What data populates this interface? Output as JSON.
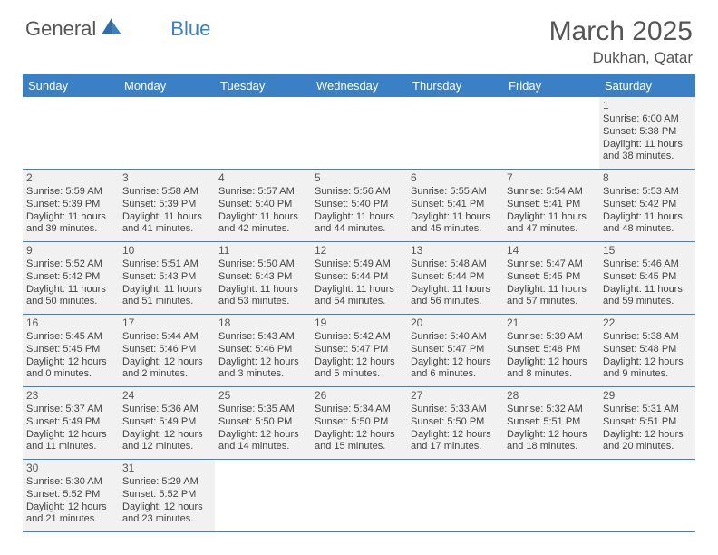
{
  "logo": {
    "text1": "General",
    "text2": "Blue"
  },
  "title": "March 2025",
  "location": "Dukhan, Qatar",
  "colors": {
    "header_bg": "#3b7fc4",
    "header_text": "#ffffff",
    "cell_bg": "#f1f1f1",
    "border": "#3b7fc4",
    "text": "#444444",
    "title_text": "#555555"
  },
  "dayHeaders": [
    "Sunday",
    "Monday",
    "Tuesday",
    "Wednesday",
    "Thursday",
    "Friday",
    "Saturday"
  ],
  "weeks": [
    [
      null,
      null,
      null,
      null,
      null,
      null,
      {
        "n": "1",
        "sr": "Sunrise: 6:00 AM",
        "ss": "Sunset: 5:38 PM",
        "dl": "Daylight: 11 hours and 38 minutes."
      }
    ],
    [
      {
        "n": "2",
        "sr": "Sunrise: 5:59 AM",
        "ss": "Sunset: 5:39 PM",
        "dl": "Daylight: 11 hours and 39 minutes."
      },
      {
        "n": "3",
        "sr": "Sunrise: 5:58 AM",
        "ss": "Sunset: 5:39 PM",
        "dl": "Daylight: 11 hours and 41 minutes."
      },
      {
        "n": "4",
        "sr": "Sunrise: 5:57 AM",
        "ss": "Sunset: 5:40 PM",
        "dl": "Daylight: 11 hours and 42 minutes."
      },
      {
        "n": "5",
        "sr": "Sunrise: 5:56 AM",
        "ss": "Sunset: 5:40 PM",
        "dl": "Daylight: 11 hours and 44 minutes."
      },
      {
        "n": "6",
        "sr": "Sunrise: 5:55 AM",
        "ss": "Sunset: 5:41 PM",
        "dl": "Daylight: 11 hours and 45 minutes."
      },
      {
        "n": "7",
        "sr": "Sunrise: 5:54 AM",
        "ss": "Sunset: 5:41 PM",
        "dl": "Daylight: 11 hours and 47 minutes."
      },
      {
        "n": "8",
        "sr": "Sunrise: 5:53 AM",
        "ss": "Sunset: 5:42 PM",
        "dl": "Daylight: 11 hours and 48 minutes."
      }
    ],
    [
      {
        "n": "9",
        "sr": "Sunrise: 5:52 AM",
        "ss": "Sunset: 5:42 PM",
        "dl": "Daylight: 11 hours and 50 minutes."
      },
      {
        "n": "10",
        "sr": "Sunrise: 5:51 AM",
        "ss": "Sunset: 5:43 PM",
        "dl": "Daylight: 11 hours and 51 minutes."
      },
      {
        "n": "11",
        "sr": "Sunrise: 5:50 AM",
        "ss": "Sunset: 5:43 PM",
        "dl": "Daylight: 11 hours and 53 minutes."
      },
      {
        "n": "12",
        "sr": "Sunrise: 5:49 AM",
        "ss": "Sunset: 5:44 PM",
        "dl": "Daylight: 11 hours and 54 minutes."
      },
      {
        "n": "13",
        "sr": "Sunrise: 5:48 AM",
        "ss": "Sunset: 5:44 PM",
        "dl": "Daylight: 11 hours and 56 minutes."
      },
      {
        "n": "14",
        "sr": "Sunrise: 5:47 AM",
        "ss": "Sunset: 5:45 PM",
        "dl": "Daylight: 11 hours and 57 minutes."
      },
      {
        "n": "15",
        "sr": "Sunrise: 5:46 AM",
        "ss": "Sunset: 5:45 PM",
        "dl": "Daylight: 11 hours and 59 minutes."
      }
    ],
    [
      {
        "n": "16",
        "sr": "Sunrise: 5:45 AM",
        "ss": "Sunset: 5:45 PM",
        "dl": "Daylight: 12 hours and 0 minutes."
      },
      {
        "n": "17",
        "sr": "Sunrise: 5:44 AM",
        "ss": "Sunset: 5:46 PM",
        "dl": "Daylight: 12 hours and 2 minutes."
      },
      {
        "n": "18",
        "sr": "Sunrise: 5:43 AM",
        "ss": "Sunset: 5:46 PM",
        "dl": "Daylight: 12 hours and 3 minutes."
      },
      {
        "n": "19",
        "sr": "Sunrise: 5:42 AM",
        "ss": "Sunset: 5:47 PM",
        "dl": "Daylight: 12 hours and 5 minutes."
      },
      {
        "n": "20",
        "sr": "Sunrise: 5:40 AM",
        "ss": "Sunset: 5:47 PM",
        "dl": "Daylight: 12 hours and 6 minutes."
      },
      {
        "n": "21",
        "sr": "Sunrise: 5:39 AM",
        "ss": "Sunset: 5:48 PM",
        "dl": "Daylight: 12 hours and 8 minutes."
      },
      {
        "n": "22",
        "sr": "Sunrise: 5:38 AM",
        "ss": "Sunset: 5:48 PM",
        "dl": "Daylight: 12 hours and 9 minutes."
      }
    ],
    [
      {
        "n": "23",
        "sr": "Sunrise: 5:37 AM",
        "ss": "Sunset: 5:49 PM",
        "dl": "Daylight: 12 hours and 11 minutes."
      },
      {
        "n": "24",
        "sr": "Sunrise: 5:36 AM",
        "ss": "Sunset: 5:49 PM",
        "dl": "Daylight: 12 hours and 12 minutes."
      },
      {
        "n": "25",
        "sr": "Sunrise: 5:35 AM",
        "ss": "Sunset: 5:50 PM",
        "dl": "Daylight: 12 hours and 14 minutes."
      },
      {
        "n": "26",
        "sr": "Sunrise: 5:34 AM",
        "ss": "Sunset: 5:50 PM",
        "dl": "Daylight: 12 hours and 15 minutes."
      },
      {
        "n": "27",
        "sr": "Sunrise: 5:33 AM",
        "ss": "Sunset: 5:50 PM",
        "dl": "Daylight: 12 hours and 17 minutes."
      },
      {
        "n": "28",
        "sr": "Sunrise: 5:32 AM",
        "ss": "Sunset: 5:51 PM",
        "dl": "Daylight: 12 hours and 18 minutes."
      },
      {
        "n": "29",
        "sr": "Sunrise: 5:31 AM",
        "ss": "Sunset: 5:51 PM",
        "dl": "Daylight: 12 hours and 20 minutes."
      }
    ],
    [
      {
        "n": "30",
        "sr": "Sunrise: 5:30 AM",
        "ss": "Sunset: 5:52 PM",
        "dl": "Daylight: 12 hours and 21 minutes."
      },
      {
        "n": "31",
        "sr": "Sunrise: 5:29 AM",
        "ss": "Sunset: 5:52 PM",
        "dl": "Daylight: 12 hours and 23 minutes."
      },
      null,
      null,
      null,
      null,
      null
    ]
  ]
}
